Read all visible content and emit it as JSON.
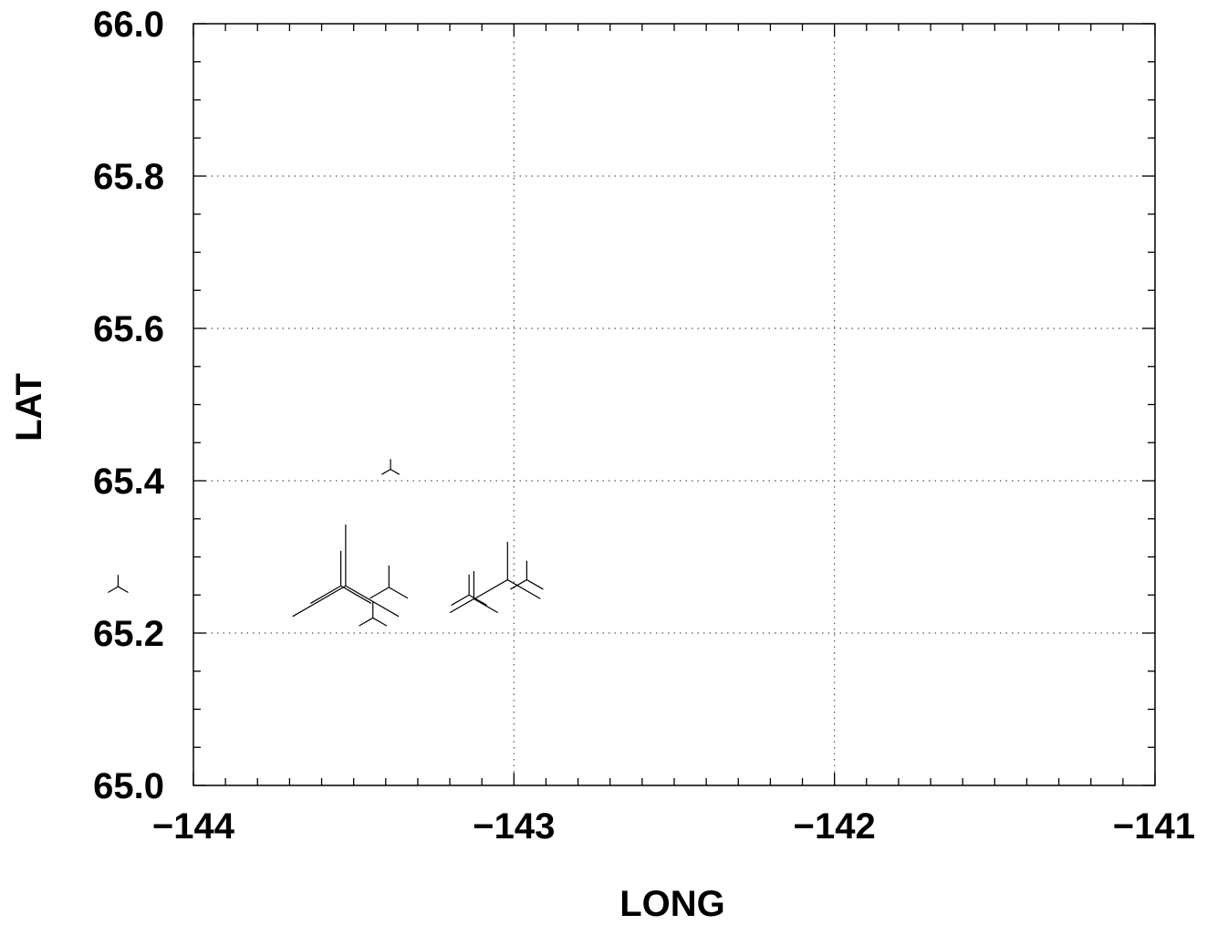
{
  "chart_data": {
    "type": "scatter",
    "xlabel": "LONG",
    "ylabel": "LAT",
    "xlim": [
      -144,
      -141
    ],
    "ylim": [
      65.0,
      66.0
    ],
    "x_ticks": [
      -144,
      -143,
      -142,
      -141
    ],
    "x_tick_labels": [
      "−144",
      "−143",
      "−142",
      "−141"
    ],
    "y_ticks": [
      65.0,
      65.2,
      65.4,
      65.6,
      65.8,
      66.0
    ],
    "y_tick_labels": [
      "65.0",
      "65.2",
      "65.4",
      "65.6",
      "65.8",
      "66.0"
    ],
    "x_minor_step": 0.1,
    "y_minor_step": 0.05,
    "grid": true,
    "legend": "none",
    "marker": "tripod",
    "points": [
      {
        "x": -144.235,
        "y": 65.261,
        "m": 0.8
      },
      {
        "x": -143.525,
        "y": 65.262,
        "m": 4.2
      },
      {
        "x": -143.54,
        "y": 65.262,
        "m": 2.4
      },
      {
        "x": -143.39,
        "y": 65.26,
        "m": 1.5
      },
      {
        "x": -143.44,
        "y": 65.22,
        "m": 1.1
      },
      {
        "x": -143.385,
        "y": 65.415,
        "m": 0.7
      },
      {
        "x": -143.125,
        "y": 65.245,
        "m": 1.9
      },
      {
        "x": -143.14,
        "y": 65.25,
        "m": 1.4
      },
      {
        "x": -143.02,
        "y": 65.27,
        "m": 2.6
      },
      {
        "x": -142.96,
        "y": 65.27,
        "m": 1.3
      }
    ]
  }
}
